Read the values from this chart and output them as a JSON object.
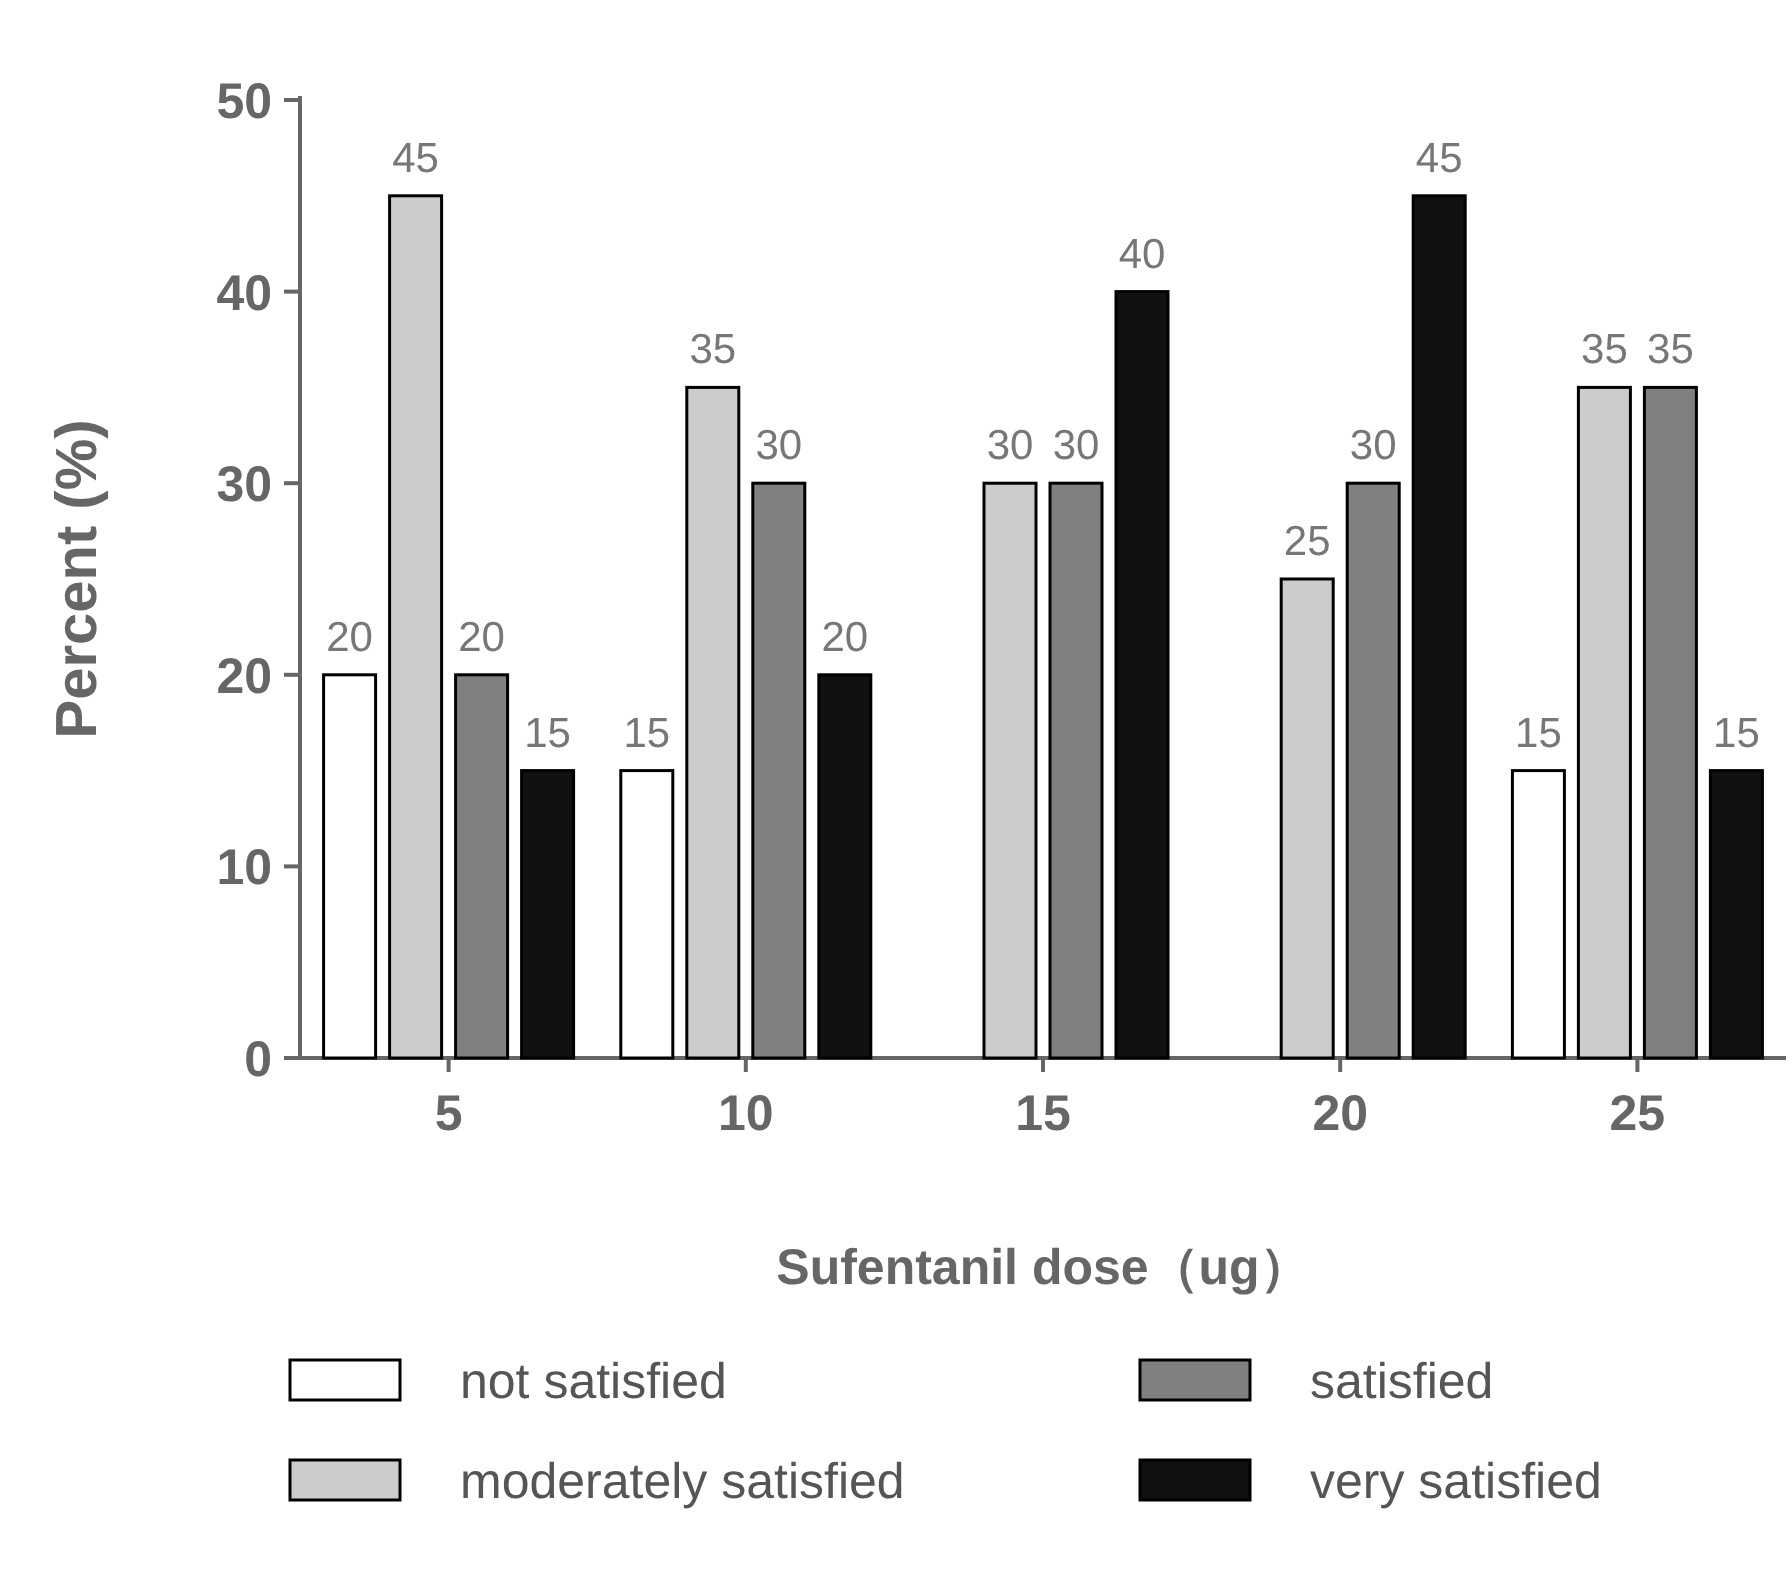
{
  "chart_data": {
    "type": "bar",
    "xlabel": "Sufentanil dose（ug）",
    "ylabel": "Percent (%)",
    "categories": [
      "5",
      "10",
      "15",
      "20",
      "25"
    ],
    "series": [
      {
        "name": "not satisfied",
        "color": "#ffffff",
        "values": [
          20,
          15,
          0,
          0,
          15
        ],
        "value_labels": [
          "20",
          "15",
          null,
          null,
          "15"
        ]
      },
      {
        "name": "moderately satisfied",
        "color": "#cccccc",
        "values": [
          45,
          35,
          30,
          25,
          35
        ],
        "value_labels": [
          "45",
          "35",
          "30",
          "25",
          "35"
        ]
      },
      {
        "name": "satisfied",
        "color": "#808080",
        "values": [
          20,
          30,
          30,
          30,
          35
        ],
        "value_labels": [
          "20",
          "30",
          "30",
          "30",
          "35"
        ]
      },
      {
        "name": "very satisfied",
        "color": "#111111",
        "values": [
          15,
          20,
          40,
          45,
          15
        ],
        "value_labels": [
          "15",
          "20",
          "40",
          "45",
          "15"
        ]
      }
    ],
    "ylim": [
      0,
      50
    ],
    "yticks": [
      0,
      10,
      20,
      30,
      40,
      50
    ],
    "grid": false,
    "legend": "bottom"
  }
}
